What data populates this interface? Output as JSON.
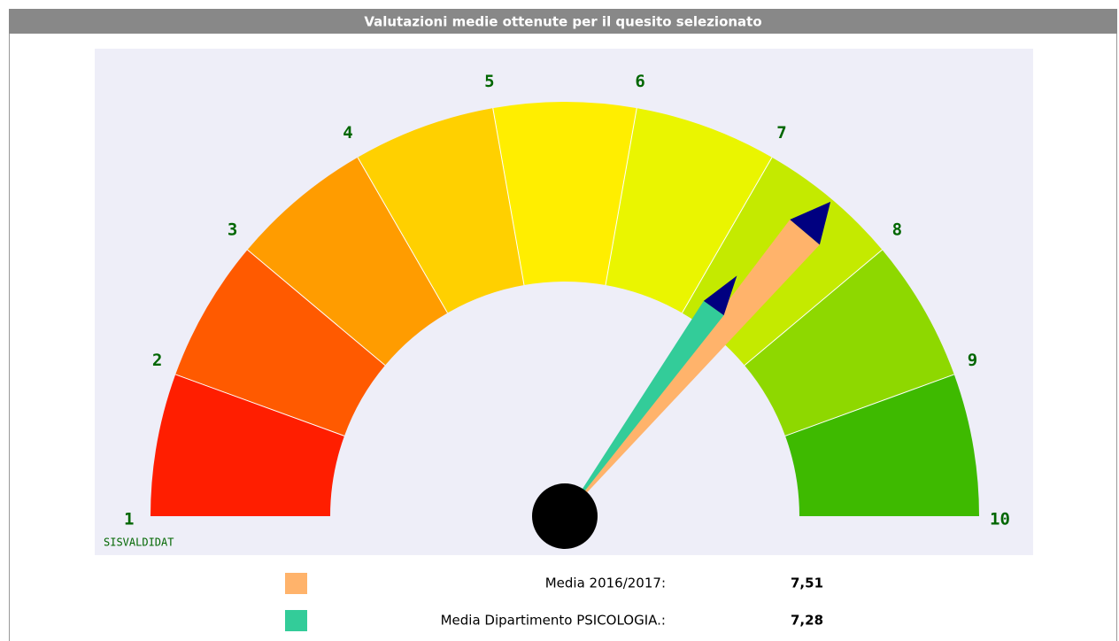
{
  "chart_data": {
    "type": "gauge",
    "title": "Valutazioni medie ottenute per il quesito selezionato",
    "watermark": "SISVALDIDAT",
    "range": [
      1,
      10
    ],
    "ticks": [
      1,
      2,
      3,
      4,
      5,
      6,
      7,
      8,
      9,
      10
    ],
    "band_colors": [
      "#ff1e00",
      "#ff5a00",
      "#ff9c00",
      "#ffd000",
      "#ffee00",
      "#eaf500",
      "#c4ea00",
      "#8ed800",
      "#3eba00"
    ],
    "needle_tip_color": "#000080",
    "series": [
      {
        "name": "Media 2016/2017:",
        "color": "#ffb36b",
        "values": [
          7.51
        ],
        "value_labels": [
          "7,51"
        ]
      },
      {
        "name": "Media Dipartimento PSICOLOGIA.:",
        "color": "#33cc99",
        "values": [
          7.28
        ],
        "value_labels": [
          "7,28"
        ]
      }
    ]
  }
}
